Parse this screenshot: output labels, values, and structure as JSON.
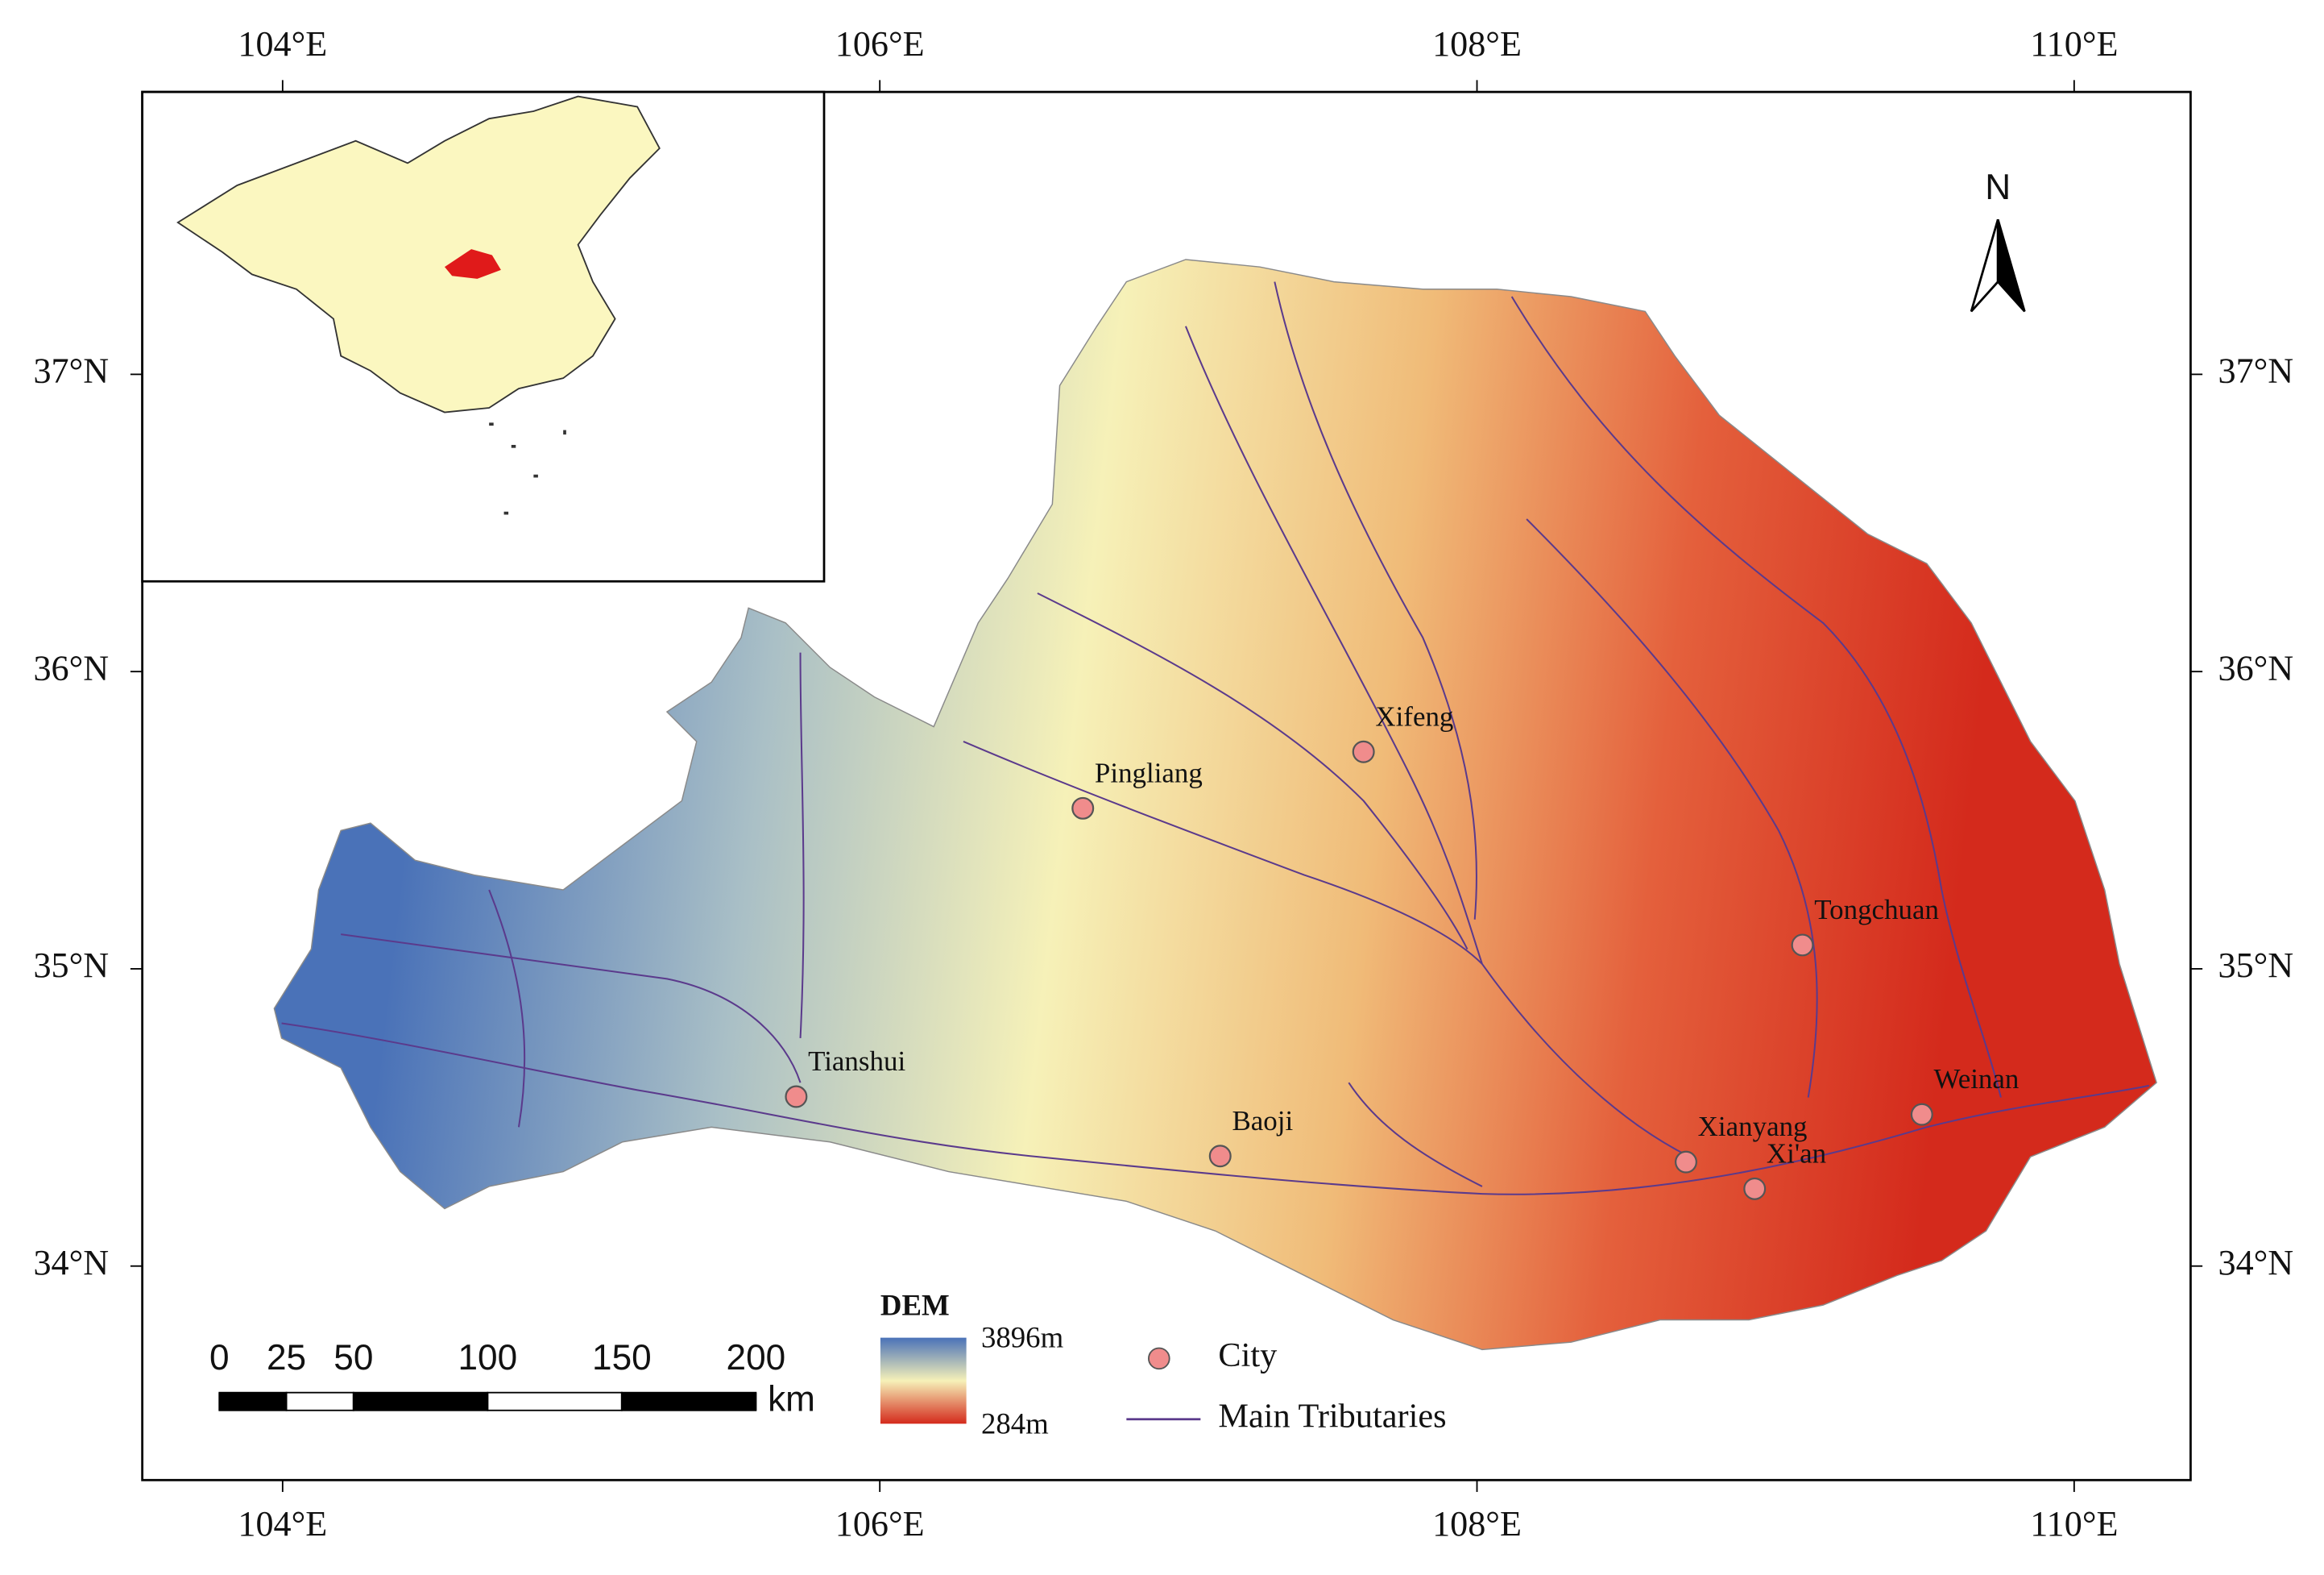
{
  "map": {
    "xlim": [
      103.53,
      110.39
    ],
    "ylim": [
      33.28,
      37.95
    ],
    "lon_ticks": [
      {
        "value": 104,
        "label": "104°E"
      },
      {
        "value": 106,
        "label": "106°E"
      },
      {
        "value": 108,
        "label": "108°E"
      },
      {
        "value": 110,
        "label": "110°E"
      }
    ],
    "lat_ticks": [
      {
        "value": 34,
        "label": "34°N"
      },
      {
        "value": 35,
        "label": "35°N"
      },
      {
        "value": 36,
        "label": "36°N"
      },
      {
        "value": 37,
        "label": "37°N"
      }
    ],
    "north": "N",
    "cities": [
      {
        "name": "Pingliang",
        "lon": 106.68,
        "lat": 35.54
      },
      {
        "name": "Xifeng",
        "lon": 107.62,
        "lat": 35.73
      },
      {
        "name": "Tongchuan",
        "lon": 109.09,
        "lat": 35.08
      },
      {
        "name": "Tianshui",
        "lon": 105.72,
        "lat": 34.57
      },
      {
        "name": "Baoji",
        "lon": 107.14,
        "lat": 34.37
      },
      {
        "name": "Xianyang",
        "lon": 108.7,
        "lat": 34.35
      },
      {
        "name": "Xi'an",
        "lon": 108.93,
        "lat": 34.26
      },
      {
        "name": "Weinan",
        "lon": 109.49,
        "lat": 34.51
      }
    ],
    "legend": {
      "dem_title": "DEM",
      "dem_max": "3896m",
      "dem_min": "284m",
      "city": "City",
      "tributaries": "Main Tributaries"
    },
    "scale_bar": {
      "ticks": [
        0,
        25,
        50,
        100,
        150,
        200
      ],
      "unit": "km"
    }
  }
}
